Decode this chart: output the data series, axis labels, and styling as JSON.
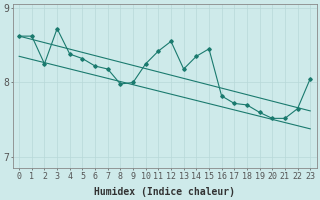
{
  "xlabel": "Humidex (Indice chaleur)",
  "bg_color": "#ceeaea",
  "grid_color": "#b8d8d8",
  "line_color": "#1a7a6e",
  "x_data": [
    0,
    1,
    2,
    3,
    4,
    5,
    6,
    7,
    8,
    9,
    10,
    11,
    12,
    13,
    14,
    15,
    16,
    17,
    18,
    19,
    20,
    21,
    22,
    23
  ],
  "y_main": [
    8.62,
    8.62,
    8.25,
    8.72,
    8.38,
    8.32,
    8.22,
    8.18,
    7.98,
    8.0,
    8.25,
    8.42,
    8.55,
    8.18,
    8.35,
    8.45,
    7.82,
    7.72,
    7.7,
    7.6,
    7.52,
    7.52,
    7.65,
    8.05
  ],
  "trend1_start": 8.62,
  "trend1_end": 7.62,
  "trend2_start": 8.35,
  "trend2_end": 7.38,
  "ylim": [
    6.85,
    9.05
  ],
  "yticks": [
    7.0,
    8.0,
    9.0
  ],
  "xlim": [
    -0.5,
    23.5
  ],
  "tick_fontsize": 6,
  "label_fontsize": 7
}
